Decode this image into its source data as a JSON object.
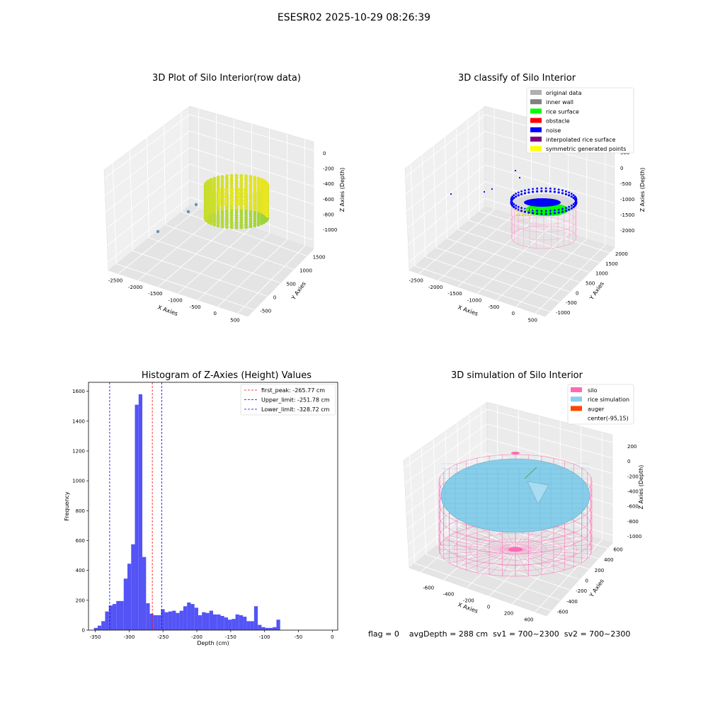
{
  "suptitle": "ESESR02 2025-10-29 08:26:39",
  "status": {
    "flag": "flag = 0",
    "avg_depth": "avgDepth = 288 cm",
    "sv1": "sv1 = 700~2300",
    "sv2": "sv2 = 700~2300"
  },
  "colors": {
    "hist_bar": "#4b4bf5",
    "silo": "#ff69b4",
    "rice_simulation": "#87ceeb",
    "auger": "#ff4500",
    "rice_surface": "#00ff00",
    "noise": "#0000ff",
    "inner_wall": "#808080"
  },
  "chart_data": [
    {
      "type": "scatter",
      "projection": "3d",
      "title": "3D Plot of Silo Interior(row data)",
      "xlabel": "X Axies",
      "ylabel": "Y Axies",
      "zlabel": "Z Axies (Depth)",
      "xticks": [
        "-2500",
        "-2000",
        "-1500",
        "-1000",
        "-500",
        "0",
        "500"
      ],
      "yticks": [
        "-500",
        "0",
        "500",
        "1000",
        "1500"
      ],
      "zticks": [
        "0",
        "-200",
        "-400",
        "-600",
        "-800",
        "-1000"
      ],
      "xlim": [
        -2700,
        600
      ],
      "ylim": [
        -600,
        1700
      ],
      "zlim": [
        -1050,
        50
      ],
      "colormap": "viridis (green-yellow)",
      "grid": true
    },
    {
      "type": "scatter",
      "projection": "3d",
      "title": "3D classify of Silo Interior",
      "xlabel": "X Axies",
      "ylabel": "Y Axies",
      "zlabel": "Z Axies (Depth)",
      "xticks": [
        "-2500",
        "-2000",
        "-1500",
        "-1000",
        "-500",
        "0",
        "500"
      ],
      "yticks": [
        "-1000",
        "-500",
        "0",
        "500",
        "1000",
        "1500",
        "2000"
      ],
      "zticks": [
        "500",
        "0",
        "-500",
        "-1000",
        "-1500",
        "-2000"
      ],
      "legend": {
        "placement": "upper right",
        "entries": [
          {
            "label": "original data",
            "color": "#b0b0b0"
          },
          {
            "label": "inner wall",
            "color": "#808080"
          },
          {
            "label": "rice surface",
            "color": "#00ff00"
          },
          {
            "label": "obstacle",
            "color": "#ff0000"
          },
          {
            "label": "noise",
            "color": "#0000ff"
          },
          {
            "label": "interpolated rice surface",
            "color": "#800080"
          },
          {
            "label": "symmetric generated points",
            "color": "#ffff00"
          }
        ]
      },
      "grid": true
    },
    {
      "type": "bar",
      "title": "Histogram of Z-Axies (Height) Values",
      "xlabel": "Depth (cm)",
      "ylabel": "Frequency",
      "xlim": [
        -360,
        8
      ],
      "ylim": [
        0,
        1660
      ],
      "xticks": [
        -350,
        -300,
        -250,
        -200,
        -150,
        -100,
        -50,
        0
      ],
      "yticks": [
        0,
        200,
        400,
        600,
        800,
        1000,
        1200,
        1400,
        1600
      ],
      "bin_width": 5.5,
      "bin_start": -352,
      "values": [
        15,
        30,
        60,
        125,
        165,
        175,
        195,
        195,
        345,
        445,
        575,
        1510,
        1580,
        490,
        180,
        110,
        100,
        100,
        140,
        120,
        125,
        130,
        115,
        130,
        160,
        185,
        175,
        150,
        100,
        120,
        115,
        130,
        105,
        105,
        95,
        85,
        70,
        75,
        105,
        100,
        90,
        60,
        60,
        160,
        35,
        20,
        15,
        15,
        20,
        70
      ],
      "vlines": [
        {
          "label": "first_peak: -265.77 cm",
          "x": -265.77,
          "color": "#ff0000"
        },
        {
          "label": "Upper_limit: -251.78 cm",
          "x": -251.78,
          "color": "#0000ff"
        },
        {
          "label": "Lower_limit: -328.72 cm",
          "x": -328.72,
          "color": "#0000ff"
        }
      ],
      "legend": {
        "placement": "upper right"
      },
      "grid": false
    },
    {
      "type": "surface",
      "projection": "3d",
      "title": "3D simulation of Silo Interior",
      "xlabel": "X Axies",
      "ylabel": "Y Axies",
      "zlabel": "Z Axies (Depth)",
      "xticks": [
        "-600",
        "-400",
        "-200",
        "0",
        "200",
        "400"
      ],
      "yticks": [
        "-600",
        "-400",
        "-200",
        "0",
        "200",
        "400",
        "600"
      ],
      "zticks": [
        "200",
        "0",
        "-200",
        "-400",
        "-600",
        "-800",
        "-1000"
      ],
      "legend": {
        "placement": "upper right",
        "entries": [
          {
            "label": "silo",
            "color": "#ff69b4"
          },
          {
            "label": "rice simulation",
            "color": "#87ceeb"
          },
          {
            "label": "auger",
            "color": "#ff4500"
          },
          {
            "label": "center(-95,15)",
            "color": ""
          }
        ]
      },
      "grid": true
    }
  ]
}
